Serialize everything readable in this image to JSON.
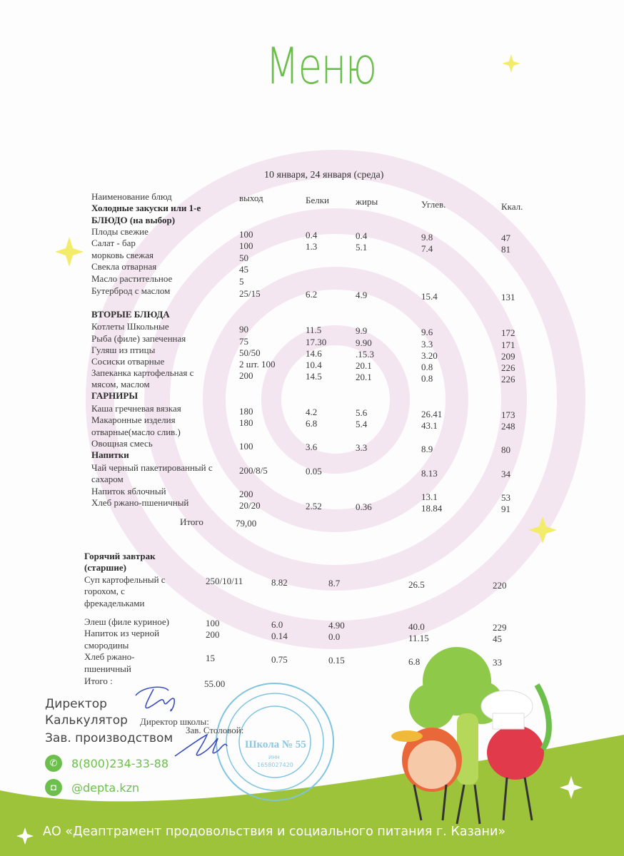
{
  "title": "Меню",
  "date": "10 января, 24 января (среда)",
  "columns": [
    "Наименование блюд",
    "выход",
    "Белки",
    "жиры",
    "Углев.",
    "Ккал."
  ],
  "section1": [
    {
      "name": "Холодные закуски или 1-е",
      "bold": true
    },
    {
      "name": "БЛЮДО  (на выбор)",
      "bold": true
    },
    {
      "name": "Плоды свежие",
      "v": [
        "100",
        "0.4",
        "0.4",
        "9.8",
        "47"
      ]
    },
    {
      "name": "Салат - бар",
      "v": [
        "100",
        "1.3",
        "5.1",
        "7.4",
        "81"
      ]
    },
    {
      "name": "морковь  свежая",
      "v": [
        "50",
        "",
        "",
        "",
        ""
      ]
    },
    {
      "name": "Свекла отварная",
      "v": [
        "45",
        "",
        "",
        "",
        ""
      ]
    },
    {
      "name": "Масло растительное",
      "v": [
        "5",
        "",
        "",
        "",
        ""
      ]
    },
    {
      "name": "Бутерброд с маслом",
      "v": [
        "25/15",
        "6.2",
        "4.9",
        "15.4",
        "131"
      ]
    },
    {
      "name": "ВТОРЫЕ БЛЮДА",
      "bold": true
    },
    {
      "name": "Котлеты Школьные",
      "v": [
        "90",
        "11.5",
        "9.9",
        "9.6",
        "172"
      ]
    },
    {
      "name": "Рыба (филе) запеченная",
      "v": [
        "75",
        "17.30",
        "9.90",
        "3.3",
        "171"
      ]
    },
    {
      "name": "Гуляш из птицы",
      "v": [
        "50/50",
        "14.6",
        ".15.3",
        "3.20",
        "209"
      ]
    },
    {
      "name": "Сосиски отварные",
      "v": [
        "2 шт. 100",
        "10.4",
        "20.1",
        "0.8",
        "226"
      ]
    },
    {
      "name": "Запеканка картофельная с",
      "v": [
        "200",
        "14.5",
        "20.1",
        "0.8",
        "226"
      ]
    },
    {
      "name": "мясом, маслом"
    },
    {
      "name": "ГАРНИРЫ",
      "bold": true
    },
    {
      "name": "Каша гречневая вязкая",
      "v": [
        "180",
        "4.2",
        "5.6",
        "26.41",
        "173"
      ]
    },
    {
      "name": "Макаронные изделия",
      "v": [
        "180",
        "6.8",
        "5.4",
        "43.1",
        "248"
      ]
    },
    {
      "name": "отварные(масло слив.)"
    },
    {
      "name": "Овощная смесь",
      "v": [
        "100",
        "3.6",
        "3.3",
        "8.9",
        "80"
      ]
    },
    {
      "name": "Напитки",
      "bold": true
    },
    {
      "name": "Чай черный пакетированный с",
      "v": [
        "200/8/5",
        "0.05",
        "",
        "8.13",
        "34"
      ]
    },
    {
      "name": "сахаром"
    },
    {
      "name": "Напиток яблочный",
      "v": [
        "200",
        "",
        "",
        "13.1",
        "53"
      ]
    },
    {
      "name": "Хлеб ржано-пшеничный",
      "v": [
        "20/20",
        "2.52",
        "0.36",
        "18.84",
        "91"
      ]
    }
  ],
  "total1": {
    "label": "Итого",
    "value": "79,00"
  },
  "section2": [
    {
      "name": "Горячий завтрак",
      "bold": true
    },
    {
      "name": "(старшие)",
      "bold": true
    },
    {
      "name": "Суп картофельный с",
      "v": [
        "250/10/11",
        "8.82",
        "8.7",
        "26.5",
        "220"
      ]
    },
    {
      "name": "горохом, с"
    },
    {
      "name": "фрекадельками"
    },
    {
      "name": "Элеш (филе куриное)",
      "v": [
        "100",
        "6.0",
        "4.90",
        "40.0",
        "229"
      ]
    },
    {
      "name": "Напиток из черной",
      "v": [
        "200",
        "0.14",
        "0.0",
        "11.15",
        "45"
      ]
    },
    {
      "name": "смородины"
    },
    {
      "name": "Хлеб ржано-",
      "v": [
        "15",
        "0.75",
        "0.15",
        "6.8",
        "33"
      ]
    },
    {
      "name": "пшеничный"
    }
  ],
  "total2": {
    "label": "Итого :",
    "value": "55.00"
  },
  "footer": {
    "director": "Директор",
    "calculator": "Калькулятор",
    "production_head": "Зав. производством",
    "school_director": "Директор школы:",
    "canteen_head": "Зав. Столовой:",
    "phone": "8(800)234-33-88",
    "instagram": "@depta.kzn",
    "organization": "АО «Деаптрамент продовольствия и социального питания г. Казани»"
  },
  "stamp": {
    "center": "Школа № 55",
    "inn_label": "ИНН",
    "inn": "1658027420"
  },
  "colors": {
    "accent": "#6cbf4a",
    "band": "#9dc33b",
    "watermark": "#f3e4ef",
    "star": "#f3ec6a"
  }
}
